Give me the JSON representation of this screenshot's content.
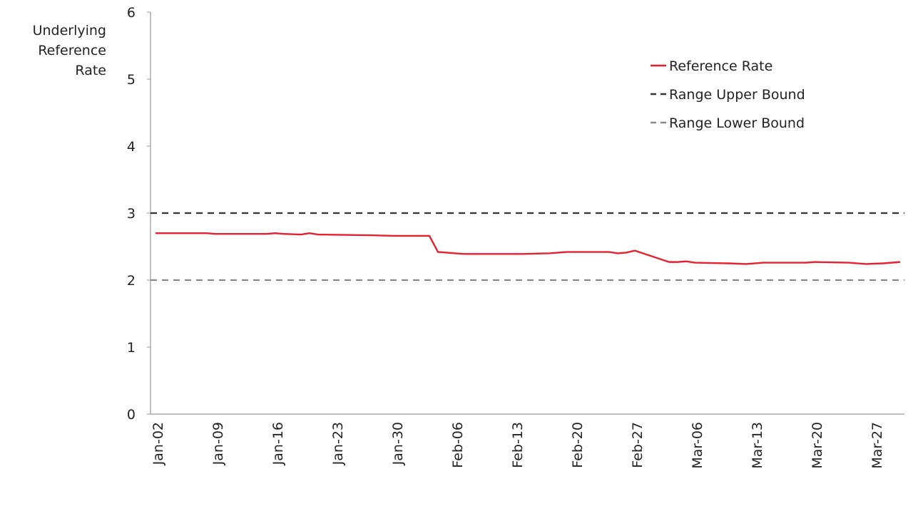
{
  "chart_data": {
    "type": "line",
    "title": "",
    "xlabel": "",
    "ylabel": "Underlying Reference Rate",
    "ylabel_lines": [
      "Underlying",
      "Reference",
      "Rate"
    ],
    "ylim": [
      0,
      6
    ],
    "yticks": [
      0,
      1,
      2,
      3,
      4,
      5,
      6
    ],
    "xlim": [
      "Jan-02",
      "Mar-30"
    ],
    "xticks": [
      "Jan-02",
      "Jan-09",
      "Jan-16",
      "Jan-23",
      "Jan-30",
      "Feb-06",
      "Feb-13",
      "Feb-20",
      "Feb-27",
      "Mar-06",
      "Mar-13",
      "Mar-20",
      "Mar-27"
    ],
    "grid": false,
    "legend_position": "top-right",
    "series": [
      {
        "name": "Reference Rate",
        "style": "solid",
        "color": "#e8202e",
        "points": [
          [
            "Jan-02",
            2.7
          ],
          [
            "Jan-08",
            2.7
          ],
          [
            "Jan-09",
            2.69
          ],
          [
            "Jan-15",
            2.69
          ],
          [
            "Jan-16",
            2.7
          ],
          [
            "Jan-17",
            2.69
          ],
          [
            "Jan-19",
            2.68
          ],
          [
            "Jan-20",
            2.7
          ],
          [
            "Jan-21",
            2.68
          ],
          [
            "Jan-27",
            2.67
          ],
          [
            "Jan-30",
            2.66
          ],
          [
            "Feb-03",
            2.66
          ],
          [
            "Feb-04",
            2.42
          ],
          [
            "Feb-05",
            2.41
          ],
          [
            "Feb-07",
            2.39
          ],
          [
            "Feb-14",
            2.39
          ],
          [
            "Feb-17",
            2.4
          ],
          [
            "Feb-19",
            2.42
          ],
          [
            "Feb-24",
            2.42
          ],
          [
            "Feb-25",
            2.4
          ],
          [
            "Feb-26",
            2.41
          ],
          [
            "Feb-27",
            2.44
          ],
          [
            "Mar-03",
            2.27
          ],
          [
            "Mar-04",
            2.27
          ],
          [
            "Mar-05",
            2.28
          ],
          [
            "Mar-06",
            2.26
          ],
          [
            "Mar-10",
            2.25
          ],
          [
            "Mar-12",
            2.24
          ],
          [
            "Mar-14",
            2.26
          ],
          [
            "Mar-19",
            2.26
          ],
          [
            "Mar-20",
            2.27
          ],
          [
            "Mar-24",
            2.26
          ],
          [
            "Mar-26",
            2.24
          ],
          [
            "Mar-28",
            2.25
          ],
          [
            "Mar-30",
            2.27
          ]
        ]
      },
      {
        "name": "Range Upper Bound",
        "style": "dashed",
        "color": "#333333",
        "points": [
          [
            "Jan-02",
            3
          ],
          [
            "Mar-30",
            3
          ]
        ]
      },
      {
        "name": "Range Lower Bound",
        "style": "dashed",
        "color": "#888888",
        "points": [
          [
            "Jan-02",
            2
          ],
          [
            "Mar-30",
            2
          ]
        ]
      }
    ]
  }
}
